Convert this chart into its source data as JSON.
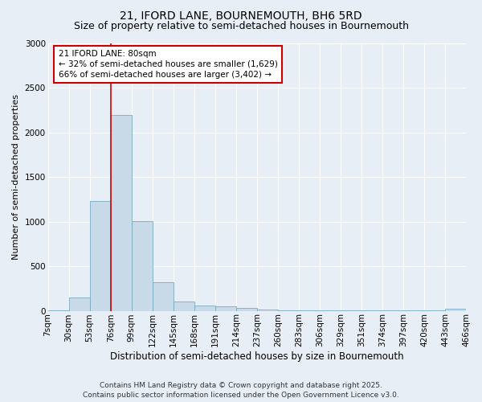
{
  "title": "21, IFORD LANE, BOURNEMOUTH, BH6 5RD",
  "subtitle": "Size of property relative to semi-detached houses in Bournemouth",
  "xlabel": "Distribution of semi-detached houses by size in Bournemouth",
  "ylabel": "Number of semi-detached properties",
  "bar_values": [
    5,
    150,
    1230,
    2200,
    1010,
    320,
    100,
    55,
    50,
    35,
    10,
    5,
    5,
    5,
    5,
    5,
    5,
    5,
    5,
    20
  ],
  "categories": [
    "7sqm",
    "30sqm",
    "53sqm",
    "76sqm",
    "99sqm",
    "122sqm",
    "145sqm",
    "168sqm",
    "191sqm",
    "214sqm",
    "237sqm",
    "260sqm",
    "283sqm",
    "306sqm",
    "329sqm",
    "351sqm",
    "374sqm",
    "397sqm",
    "420sqm",
    "443sqm",
    "466sqm"
  ],
  "bar_color": "#c8d9e8",
  "bar_edge_color": "#7aaabf",
  "property_sqm": 80,
  "pct_smaller": 32,
  "n_smaller": 1629,
  "pct_larger": 66,
  "n_larger": 3402,
  "annotation_text": "21 IFORD LANE: 80sqm\n← 32% of semi-detached houses are smaller (1,629)\n66% of semi-detached houses are larger (3,402) →",
  "ylim": [
    0,
    3000
  ],
  "yticks": [
    0,
    500,
    1000,
    1500,
    2000,
    2500,
    3000
  ],
  "red_line_color": "#cc0000",
  "annotation_box_facecolor": "#ffffff",
  "annotation_box_edgecolor": "#cc0000",
  "background_color": "#e8eef5",
  "grid_color": "#ffffff",
  "footer_text": "Contains HM Land Registry data © Crown copyright and database right 2025.\nContains public sector information licensed under the Open Government Licence v3.0.",
  "title_fontsize": 10,
  "subtitle_fontsize": 9,
  "xlabel_fontsize": 8.5,
  "ylabel_fontsize": 8,
  "tick_fontsize": 7.5,
  "annotation_fontsize": 7.5,
  "footer_fontsize": 6.5
}
